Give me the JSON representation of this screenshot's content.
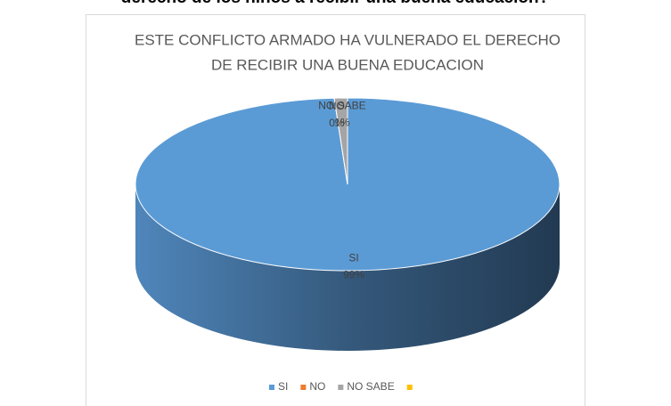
{
  "heading": "derecho de los niños a recibir una buena educación?",
  "chart_data": {
    "type": "pie3d",
    "title": [
      "ESTE CONFLICTO  ARMADO HA VULNERADO EL DERECHO",
      "DE RECIBIR  UNA BUENA EDUCACION"
    ],
    "categories": [
      "SI",
      "NO",
      "NO SABE",
      null
    ],
    "values": [
      99,
      0,
      1,
      0
    ],
    "value_labels": [
      "99%",
      "0%",
      "1%",
      null
    ],
    "colors": [
      "#5b9bd5",
      "#ed7d31",
      "#a5a5a5",
      "#ffc000"
    ],
    "legend": "bottom"
  }
}
